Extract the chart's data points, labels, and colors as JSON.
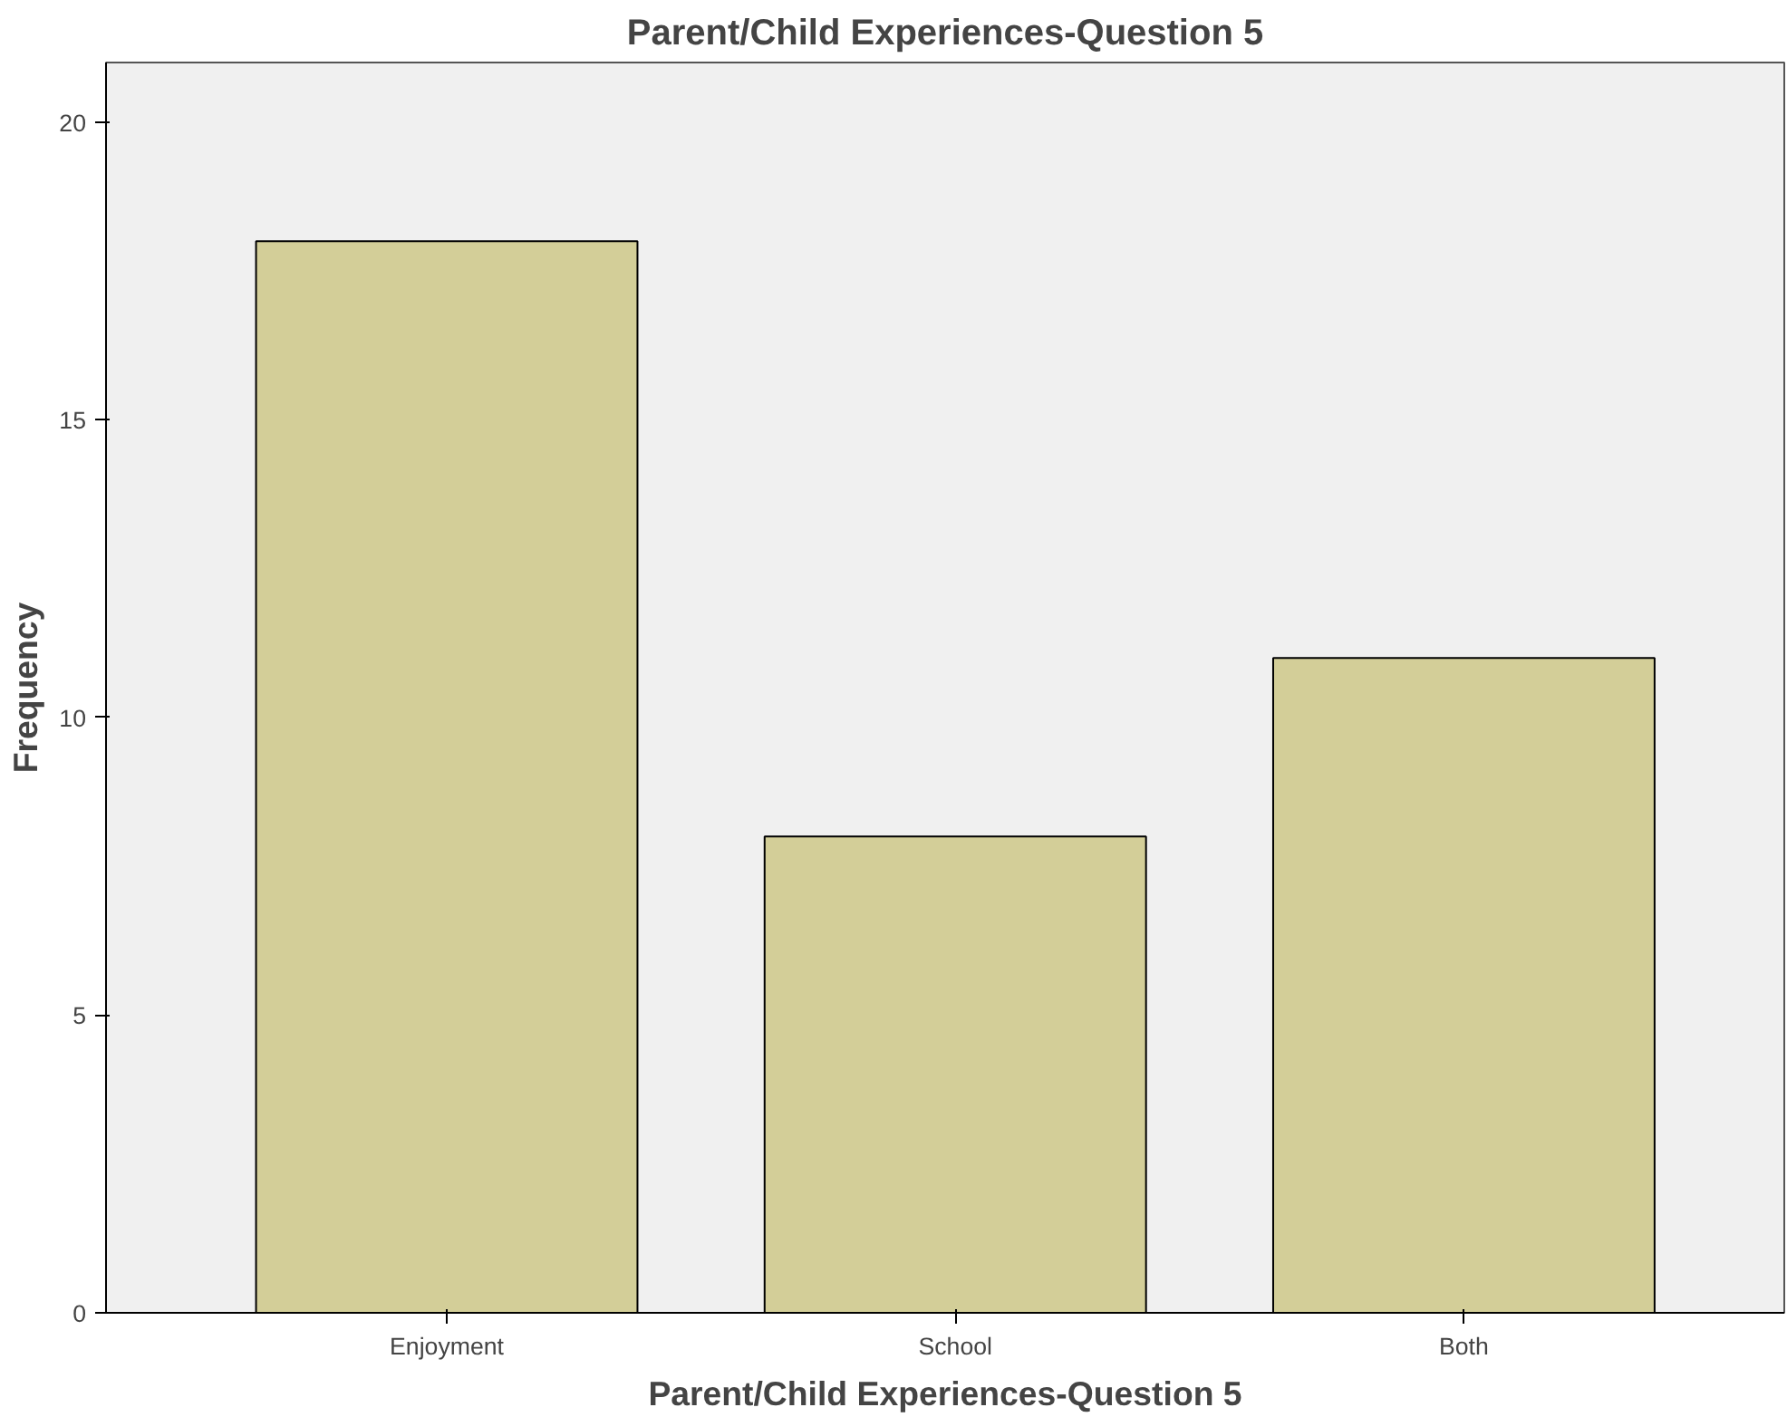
{
  "chart_data": {
    "type": "bar",
    "title": "Parent/Child Experiences-Question 5",
    "xlabel": "Parent/Child Experiences-Question 5",
    "ylabel": "Frequency",
    "categories": [
      "Enjoyment",
      "School",
      "Both"
    ],
    "values": [
      18,
      8,
      11
    ],
    "color": "#d3ce98",
    "ylim": [
      0,
      21
    ],
    "yticks": [
      0,
      5,
      10,
      15,
      20
    ],
    "grid": false
  }
}
